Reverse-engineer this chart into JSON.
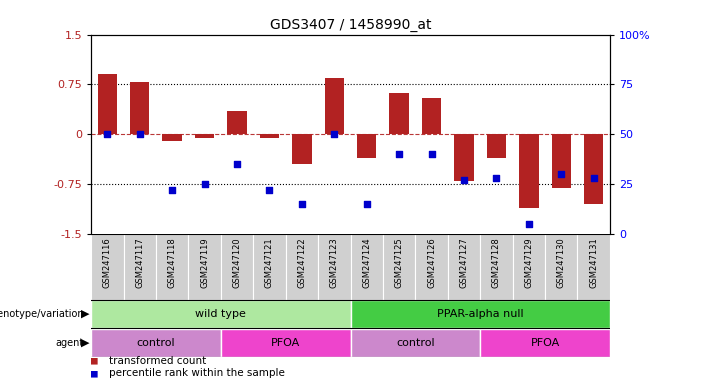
{
  "title": "GDS3407 / 1458990_at",
  "samples": [
    "GSM247116",
    "GSM247117",
    "GSM247118",
    "GSM247119",
    "GSM247120",
    "GSM247121",
    "GSM247122",
    "GSM247123",
    "GSM247124",
    "GSM247125",
    "GSM247126",
    "GSM247127",
    "GSM247128",
    "GSM247129",
    "GSM247130",
    "GSM247131"
  ],
  "bar_values": [
    0.9,
    0.78,
    -0.1,
    -0.05,
    0.35,
    -0.05,
    -0.45,
    0.85,
    -0.35,
    0.62,
    0.55,
    -0.7,
    -0.35,
    -1.1,
    -0.8,
    -1.05
  ],
  "dot_percentiles": [
    50,
    50,
    22,
    25,
    35,
    22,
    15,
    50,
    15,
    40,
    40,
    27,
    28,
    5,
    30,
    28
  ],
  "genotype_groups": [
    {
      "label": "wild type",
      "start": 0,
      "end": 7,
      "color": "#aee8a0"
    },
    {
      "label": "PPAR-alpha null",
      "start": 8,
      "end": 15,
      "color": "#44cc44"
    }
  ],
  "agent_groups": [
    {
      "label": "control",
      "start": 0,
      "end": 3,
      "color": "#cc88cc"
    },
    {
      "label": "PFOA",
      "start": 4,
      "end": 7,
      "color": "#ee44cc"
    },
    {
      "label": "control",
      "start": 8,
      "end": 11,
      "color": "#cc88cc"
    },
    {
      "label": "PFOA",
      "start": 12,
      "end": 15,
      "color": "#ee44cc"
    }
  ],
  "bar_color": "#B22222",
  "dot_color": "#0000CC",
  "ylim": [
    -1.5,
    1.5
  ],
  "y2lim": [
    0,
    100
  ],
  "yticks": [
    -1.5,
    -0.75,
    0,
    0.75,
    1.5
  ],
  "y2ticks": [
    0,
    25,
    50,
    75,
    100
  ],
  "dotted_lines": [
    0.75,
    -0.75
  ],
  "background_color": "#ffffff",
  "tick_cell_color": "#d0d0d0"
}
